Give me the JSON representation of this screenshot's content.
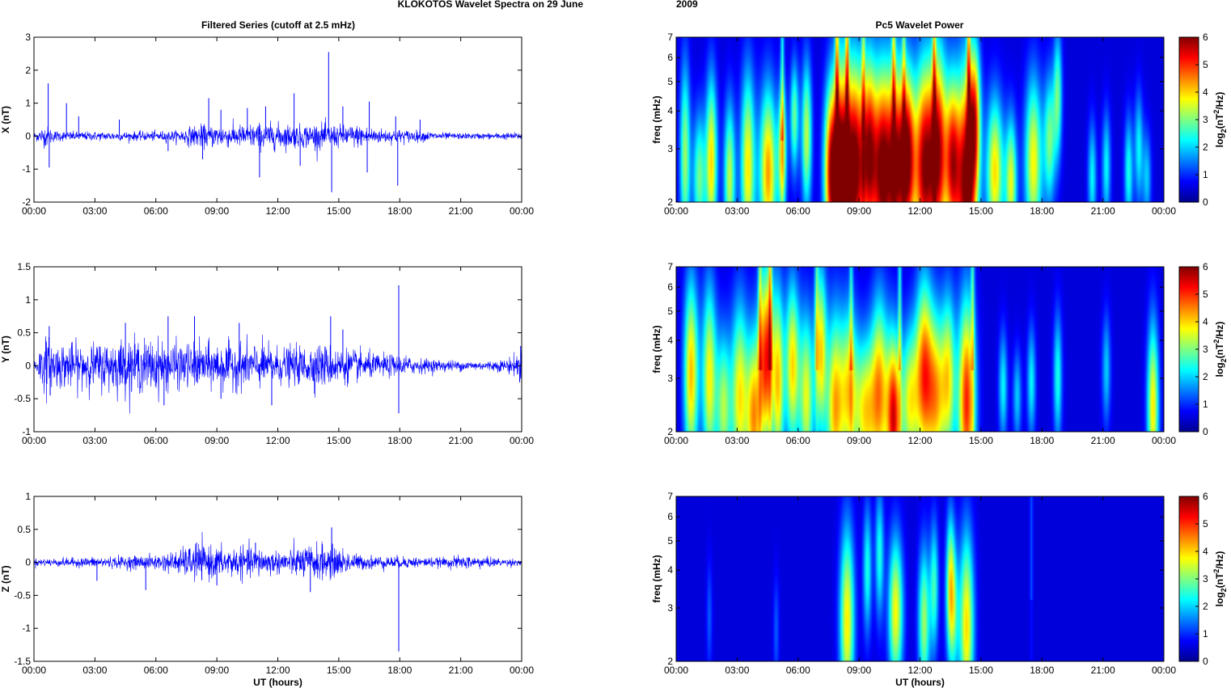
{
  "figure": {
    "title": "KLOKOTOS Wavelet Spectra on 29 June",
    "title_year": "2009",
    "left_title": "Filtered Series (cutoff at 2.5 mHz)",
    "right_title": "Pc5 Wavelet Power",
    "xlabel": "UT (hours)"
  },
  "colors": {
    "trace": "#0000ff",
    "trace_light": "#8c8cff",
    "axis": "#000000",
    "colormap": [
      "#00008f",
      "#0000ff",
      "#0080ff",
      "#00ffff",
      "#80ff80",
      "#ffff00",
      "#ff8000",
      "#ff0000",
      "#800000"
    ]
  },
  "chart_data": [
    {
      "type": "line",
      "panel": "X component filtered series",
      "ylabel": "X (nT)",
      "xlim_hours": [
        0,
        24
      ],
      "ylim": [
        -2,
        3
      ],
      "xticks": [
        "00:00",
        "03:00",
        "06:00",
        "09:00",
        "12:00",
        "15:00",
        "18:00",
        "21:00",
        "00:00"
      ],
      "yticks": [
        -2,
        -1,
        0,
        1,
        2,
        3
      ],
      "noise_profile": [
        [
          0,
          0.1
        ],
        [
          0.6,
          0.3
        ],
        [
          1,
          0.15
        ],
        [
          2,
          0.12
        ],
        [
          3,
          0.12
        ],
        [
          5,
          0.12
        ],
        [
          7,
          0.15
        ],
        [
          8,
          0.3
        ],
        [
          9,
          0.3
        ],
        [
          10,
          0.3
        ],
        [
          11,
          0.35
        ],
        [
          12,
          0.35
        ],
        [
          13,
          0.3
        ],
        [
          14,
          0.35
        ],
        [
          15,
          0.3
        ],
        [
          16,
          0.3
        ],
        [
          17,
          0.2
        ],
        [
          18,
          0.18
        ],
        [
          19,
          0.15
        ],
        [
          20,
          0.1
        ],
        [
          21,
          0.08
        ],
        [
          22,
          0.08
        ],
        [
          24,
          0.1
        ]
      ],
      "spikes": [
        [
          0.7,
          1.6
        ],
        [
          0.75,
          -0.95
        ],
        [
          1.6,
          1.0
        ],
        [
          2.2,
          0.6
        ],
        [
          4.2,
          0.5
        ],
        [
          6.6,
          -0.45
        ],
        [
          8.6,
          1.15
        ],
        [
          8.3,
          -0.7
        ],
        [
          9.2,
          0.8
        ],
        [
          10.5,
          0.85
        ],
        [
          11.1,
          -1.25
        ],
        [
          11.4,
          0.9
        ],
        [
          12.8,
          1.3
        ],
        [
          13.1,
          -0.9
        ],
        [
          14.5,
          2.55
        ],
        [
          14.65,
          -1.7
        ],
        [
          15.2,
          0.9
        ],
        [
          16.5,
          1.05
        ],
        [
          16.4,
          -1.1
        ],
        [
          17.9,
          -1.5
        ],
        [
          17.8,
          0.6
        ],
        [
          19.0,
          0.5
        ]
      ]
    },
    {
      "type": "line",
      "panel": "Y component filtered series",
      "ylabel": "Y (nT)",
      "xlim_hours": [
        0,
        24
      ],
      "ylim": [
        -1,
        1.5
      ],
      "xticks": [
        "00:00",
        "03:00",
        "06:00",
        "09:00",
        "12:00",
        "15:00",
        "18:00",
        "21:00",
        "00:00"
      ],
      "yticks": [
        -1,
        -0.5,
        0,
        0.5,
        1,
        1.5
      ],
      "noise_profile": [
        [
          0,
          0.1
        ],
        [
          0.6,
          0.4
        ],
        [
          1,
          0.3
        ],
        [
          3,
          0.3
        ],
        [
          4,
          0.35
        ],
        [
          5,
          0.35
        ],
        [
          6,
          0.35
        ],
        [
          7,
          0.3
        ],
        [
          8,
          0.3
        ],
        [
          9,
          0.3
        ],
        [
          10,
          0.3
        ],
        [
          11,
          0.3
        ],
        [
          12,
          0.25
        ],
        [
          13,
          0.25
        ],
        [
          14,
          0.3
        ],
        [
          15,
          0.25
        ],
        [
          16,
          0.2
        ],
        [
          17,
          0.15
        ],
        [
          18,
          0.15
        ],
        [
          19,
          0.1
        ],
        [
          20,
          0.08
        ],
        [
          22,
          0.06
        ],
        [
          23,
          0.08
        ],
        [
          23.8,
          0.15
        ],
        [
          24,
          0.25
        ]
      ],
      "spikes": [
        [
          0.75,
          0.6
        ],
        [
          0.8,
          -0.45
        ],
        [
          4.5,
          0.65
        ],
        [
          6.6,
          0.75
        ],
        [
          6.4,
          -0.6
        ],
        [
          7.9,
          0.75
        ],
        [
          9.2,
          -0.5
        ],
        [
          10.1,
          0.65
        ],
        [
          11.7,
          -0.6
        ],
        [
          14.6,
          0.75
        ],
        [
          15.2,
          0.55
        ],
        [
          17.95,
          1.22
        ],
        [
          17.95,
          -0.72
        ],
        [
          23.95,
          0.3
        ],
        [
          23.9,
          -0.25
        ]
      ]
    },
    {
      "type": "line",
      "panel": "Z component filtered series",
      "ylabel": "Z (nT)",
      "xlim_hours": [
        0,
        24
      ],
      "ylim": [
        -1.5,
        1
      ],
      "xticks": [
        "00:00",
        "03:00",
        "06:00",
        "09:00",
        "12:00",
        "15:00",
        "18:00",
        "21:00",
        "00:00"
      ],
      "yticks": [
        -1.5,
        -1,
        -0.5,
        0,
        0.5,
        1
      ],
      "noise_profile": [
        [
          0,
          0.05
        ],
        [
          2,
          0.06
        ],
        [
          4,
          0.08
        ],
        [
          6,
          0.1
        ],
        [
          7,
          0.15
        ],
        [
          8,
          0.25
        ],
        [
          9,
          0.2
        ],
        [
          10,
          0.2
        ],
        [
          11,
          0.2
        ],
        [
          12,
          0.15
        ],
        [
          13,
          0.2
        ],
        [
          14,
          0.25
        ],
        [
          15,
          0.2
        ],
        [
          16,
          0.1
        ],
        [
          18,
          0.08
        ],
        [
          20,
          0.06
        ],
        [
          21,
          0.09
        ],
        [
          22,
          0.08
        ],
        [
          23,
          0.05
        ],
        [
          24,
          0.05
        ]
      ],
      "spikes": [
        [
          3.1,
          -0.28
        ],
        [
          5.5,
          -0.42
        ],
        [
          8.0,
          0.3
        ],
        [
          9.0,
          -0.35
        ],
        [
          10.9,
          0.3
        ],
        [
          13.6,
          -0.45
        ],
        [
          14.65,
          0.53
        ],
        [
          17.95,
          -1.35
        ]
      ]
    },
    {
      "type": "heatmap",
      "panel": "X component wavelet power",
      "ylabel": "freq (mHz)",
      "yscale": "log",
      "ylim": [
        2,
        7
      ],
      "yticks": [
        2,
        3,
        4,
        5,
        6,
        7
      ],
      "xlim_hours": [
        0,
        24
      ],
      "xticks": [
        "00:00",
        "03:00",
        "06:00",
        "09:00",
        "12:00",
        "15:00",
        "18:00",
        "21:00",
        "00:00"
      ],
      "colorbar_label": "log2(nT2/Hz)",
      "clim": [
        0,
        6
      ],
      "colorbar_ticks": [
        0,
        1,
        2,
        3,
        4,
        5,
        6
      ],
      "blobs": [
        [
          0.4,
          2.8,
          2.8,
          0.18,
          0.5
        ],
        [
          1.1,
          2.4,
          2.5,
          0.22,
          0.35
        ],
        [
          1.7,
          2.7,
          3.6,
          0.2,
          0.45
        ],
        [
          2.6,
          2.4,
          3.0,
          0.2,
          0.4
        ],
        [
          3.5,
          2.6,
          3.5,
          0.25,
          0.5
        ],
        [
          4.5,
          2.5,
          4.0,
          0.3,
          0.45
        ],
        [
          5.2,
          2.9,
          3.2,
          0.15,
          0.35
        ],
        [
          5.8,
          3.8,
          2.5,
          0.15,
          0.3
        ],
        [
          6.4,
          3.3,
          3.0,
          0.18,
          0.4
        ],
        [
          7.6,
          2.5,
          4.5,
          0.25,
          0.45
        ],
        [
          8.1,
          2.4,
          5.8,
          0.3,
          0.6
        ],
        [
          8.8,
          2.6,
          5.8,
          0.35,
          0.55
        ],
        [
          9.5,
          2.9,
          4.6,
          0.25,
          0.5
        ],
        [
          10.1,
          2.5,
          5.2,
          0.3,
          0.55
        ],
        [
          10.8,
          2.6,
          5.5,
          0.35,
          0.55
        ],
        [
          11.4,
          2.8,
          4.8,
          0.25,
          0.45
        ],
        [
          12.2,
          2.6,
          5.5,
          0.35,
          0.55
        ],
        [
          12.9,
          2.9,
          5.2,
          0.3,
          0.55
        ],
        [
          13.6,
          2.7,
          4.5,
          0.25,
          0.45
        ],
        [
          14.3,
          2.3,
          6.0,
          0.35,
          0.6
        ],
        [
          14.7,
          3.8,
          3.5,
          0.2,
          0.4
        ],
        [
          15.7,
          2.5,
          3.6,
          0.3,
          0.4
        ],
        [
          16.5,
          2.3,
          3.2,
          0.2,
          0.35
        ],
        [
          17.6,
          2.7,
          3.4,
          0.3,
          0.45
        ],
        [
          18.4,
          3.2,
          2.5,
          0.2,
          0.35
        ],
        [
          18.8,
          4.5,
          2.4,
          0.15,
          0.35
        ],
        [
          20.5,
          2.4,
          1.8,
          0.15,
          0.3
        ],
        [
          21.2,
          2.6,
          1.8,
          0.15,
          0.3
        ],
        [
          22.3,
          2.5,
          2.0,
          0.15,
          0.3
        ],
        [
          22.8,
          3.0,
          1.8,
          0.15,
          0.3
        ],
        [
          23.2,
          2.4,
          1.5,
          0.15,
          0.25
        ]
      ],
      "streaks": [
        [
          7.9,
          4.6
        ],
        [
          8.4,
          4.4
        ],
        [
          10.7,
          3.6
        ],
        [
          12.7,
          3.8
        ],
        [
          14.4,
          4.6
        ],
        [
          5.2,
          2.8
        ],
        [
          9.2,
          3.0
        ],
        [
          11.2,
          2.8
        ]
      ]
    },
    {
      "type": "heatmap",
      "panel": "Y component wavelet power",
      "ylabel": "freq (mHz)",
      "yscale": "log",
      "ylim": [
        2,
        7
      ],
      "yticks": [
        2,
        3,
        4,
        5,
        6,
        7
      ],
      "xlim_hours": [
        0,
        24
      ],
      "xticks": [
        "00:00",
        "03:00",
        "06:00",
        "09:00",
        "12:00",
        "15:00",
        "18:00",
        "21:00",
        "00:00"
      ],
      "colorbar_label": "log2(nT2/Hz)",
      "clim": [
        0,
        6
      ],
      "colorbar_ticks": [
        0,
        1,
        2,
        3,
        4,
        5,
        6
      ],
      "blobs": [
        [
          0.7,
          3.1,
          3.8,
          0.25,
          0.5
        ],
        [
          1.6,
          3.0,
          3.4,
          0.25,
          0.5
        ],
        [
          2.3,
          2.4,
          2.8,
          0.25,
          0.4
        ],
        [
          3.1,
          2.6,
          3.5,
          0.3,
          0.5
        ],
        [
          3.8,
          2.2,
          3.8,
          0.25,
          0.45
        ],
        [
          4.4,
          3.5,
          4.8,
          0.25,
          0.5
        ],
        [
          5.0,
          2.9,
          3.5,
          0.2,
          0.5
        ],
        [
          5.7,
          3.3,
          3.6,
          0.25,
          0.45
        ],
        [
          6.4,
          2.6,
          3.2,
          0.25,
          0.45
        ],
        [
          7.1,
          3.7,
          3.5,
          0.2,
          0.45
        ],
        [
          7.8,
          2.4,
          3.8,
          0.3,
          0.5
        ],
        [
          8.5,
          2.7,
          3.3,
          0.3,
          0.45
        ],
        [
          9.3,
          2.3,
          3.4,
          0.35,
          0.4
        ],
        [
          10.0,
          2.7,
          3.8,
          0.3,
          0.5
        ],
        [
          10.7,
          2.2,
          5.0,
          0.25,
          0.45
        ],
        [
          11.5,
          2.5,
          3.2,
          0.3,
          0.4
        ],
        [
          12.2,
          3.1,
          4.3,
          0.3,
          0.5
        ],
        [
          12.8,
          2.6,
          3.5,
          0.3,
          0.45
        ],
        [
          13.4,
          3.0,
          3.2,
          0.25,
          0.45
        ],
        [
          14.3,
          2.5,
          4.8,
          0.3,
          0.55
        ],
        [
          16.1,
          2.8,
          1.8,
          0.15,
          0.3
        ],
        [
          16.8,
          2.6,
          1.5,
          0.15,
          0.25
        ],
        [
          17.5,
          2.9,
          1.8,
          0.15,
          0.3
        ],
        [
          18.8,
          3.0,
          2.0,
          0.15,
          0.35
        ],
        [
          21.2,
          3.2,
          1.5,
          0.15,
          0.3
        ],
        [
          23.5,
          2.4,
          3.5,
          0.2,
          0.45
        ]
      ],
      "streaks": [
        [
          4.6,
          3.8
        ],
        [
          4.1,
          3.2
        ],
        [
          11.0,
          3.0
        ],
        [
          8.6,
          2.6
        ],
        [
          6.9,
          2.5
        ],
        [
          14.6,
          2.8
        ]
      ]
    },
    {
      "type": "heatmap",
      "panel": "Z component wavelet power",
      "ylabel": "freq (mHz)",
      "yscale": "log",
      "ylim": [
        2,
        7
      ],
      "yticks": [
        2,
        3,
        4,
        5,
        6,
        7
      ],
      "xlim_hours": [
        0,
        24
      ],
      "xticks": [
        "00:00",
        "03:00",
        "06:00",
        "09:00",
        "12:00",
        "15:00",
        "18:00",
        "21:00",
        "00:00"
      ],
      "colorbar_label": "log2(nT2/Hz)",
      "clim": [
        0,
        6
      ],
      "colorbar_ticks": [
        0,
        1,
        2,
        3,
        4,
        5,
        6
      ],
      "blobs": [
        [
          8.4,
          2.7,
          3.5,
          0.25,
          0.5
        ],
        [
          9.4,
          4.0,
          2.0,
          0.15,
          0.35
        ],
        [
          10.0,
          4.5,
          2.0,
          0.15,
          0.35
        ],
        [
          10.8,
          2.9,
          3.4,
          0.25,
          0.4
        ],
        [
          12.2,
          2.7,
          2.8,
          0.2,
          0.4
        ],
        [
          12.7,
          3.5,
          2.2,
          0.15,
          0.35
        ],
        [
          13.5,
          4.0,
          2.0,
          0.15,
          0.35
        ],
        [
          13.6,
          2.9,
          2.6,
          0.2,
          0.35
        ],
        [
          14.3,
          2.6,
          3.6,
          0.25,
          0.5
        ],
        [
          1.6,
          2.8,
          0.8,
          0.1,
          0.3
        ],
        [
          4.9,
          2.5,
          0.8,
          0.1,
          0.3
        ]
      ],
      "streaks": [
        [
          17.5,
          1.2
        ]
      ]
    }
  ]
}
